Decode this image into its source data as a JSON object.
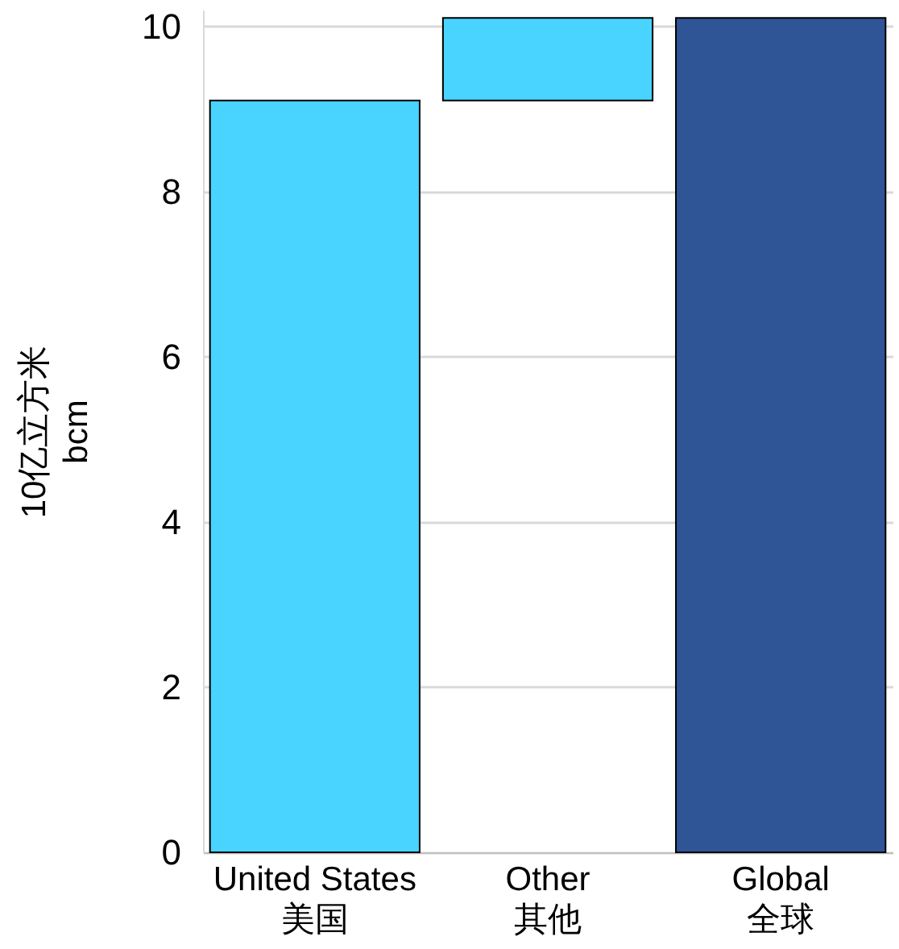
{
  "chart_data": {
    "type": "bar",
    "ylabel": "10亿立方米\nbcm",
    "categories": [
      "United States\n美国",
      "Other\n其他",
      "Global\n全球"
    ],
    "values": [
      9.1,
      1.0,
      10.1
    ],
    "base": [
      0,
      9.1,
      0
    ],
    "colors": [
      "#48d4ff",
      "#48d4ff",
      "#2f5597"
    ],
    "ylim": [
      0,
      10.2
    ],
    "yticks": [
      0,
      2,
      4,
      6,
      8,
      10
    ],
    "grid": "y"
  }
}
